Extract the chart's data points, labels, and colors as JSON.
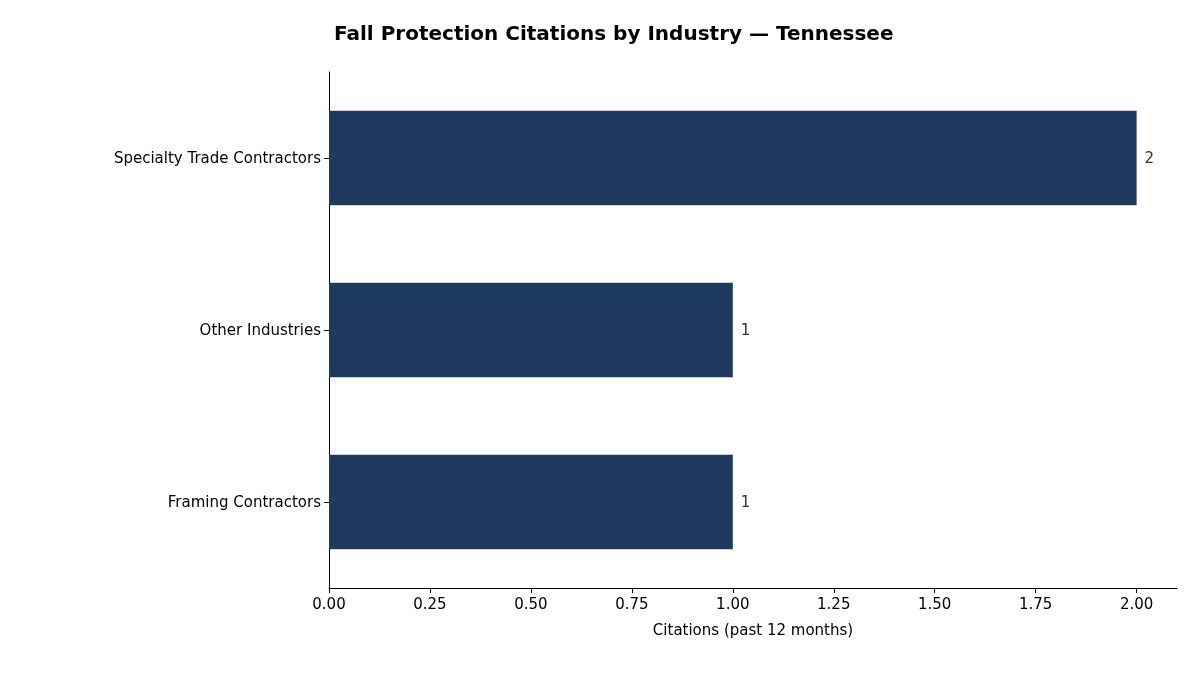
{
  "chart_data": {
    "type": "bar",
    "orientation": "horizontal",
    "title": "Fall Protection Citations by Industry — Tennessee",
    "xlabel": "Citations (past 12 months)",
    "categories": [
      "Specialty Trade Contractors",
      "Other Industries",
      "Framing Contractors"
    ],
    "values": [
      2,
      1,
      1
    ],
    "color": "#1f3a5f",
    "xlim": [
      0,
      2.1
    ],
    "xticks": [
      {
        "value": 0,
        "label": "0.00"
      },
      {
        "value": 0.25,
        "label": "0.25"
      },
      {
        "value": 0.5,
        "label": "0.50"
      },
      {
        "value": 0.75,
        "label": "0.75"
      },
      {
        "value": 1,
        "label": "1.00"
      },
      {
        "value": 1.25,
        "label": "1.25"
      },
      {
        "value": 1.5,
        "label": "1.50"
      },
      {
        "value": 1.75,
        "label": "1.75"
      },
      {
        "value": 2,
        "label": "2.00"
      }
    ],
    "data_labels": true
  }
}
